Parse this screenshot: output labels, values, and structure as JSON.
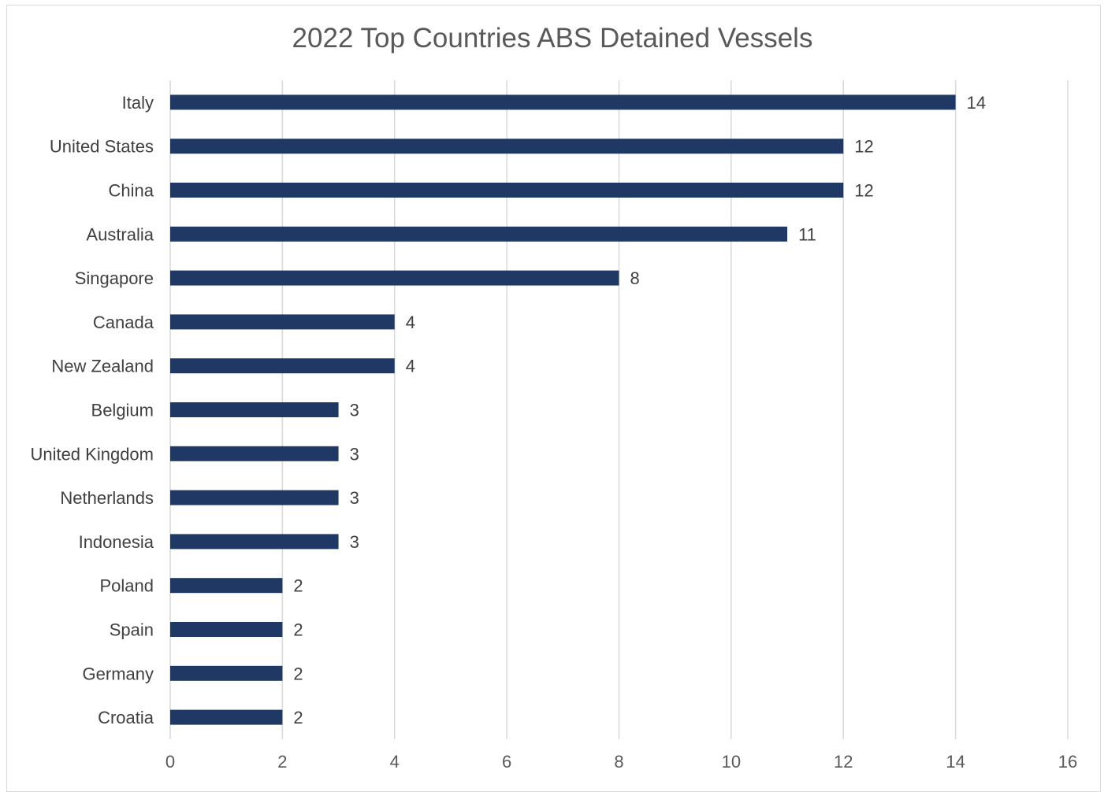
{
  "chart_data": {
    "type": "bar",
    "orientation": "horizontal",
    "title": "2022 Top Countries ABS Detained Vessels",
    "categories": [
      "Italy",
      "United States",
      "China",
      "Australia",
      "Singapore",
      "Canada",
      "New Zealand",
      "Belgium",
      "United Kingdom",
      "Netherlands",
      "Indonesia",
      "Poland",
      "Spain",
      "Germany",
      "Croatia"
    ],
    "values": [
      14,
      12,
      12,
      11,
      8,
      4,
      4,
      3,
      3,
      3,
      3,
      2,
      2,
      2,
      2
    ],
    "xticks": [
      "0",
      "2",
      "4",
      "6",
      "8",
      "10",
      "12",
      "14",
      "16"
    ],
    "xlim": [
      0,
      16
    ],
    "grid": "vertical",
    "legend": "none",
    "data_labels": true,
    "bar_color": "#1f3864",
    "grid_color": "#d9d9d9"
  }
}
